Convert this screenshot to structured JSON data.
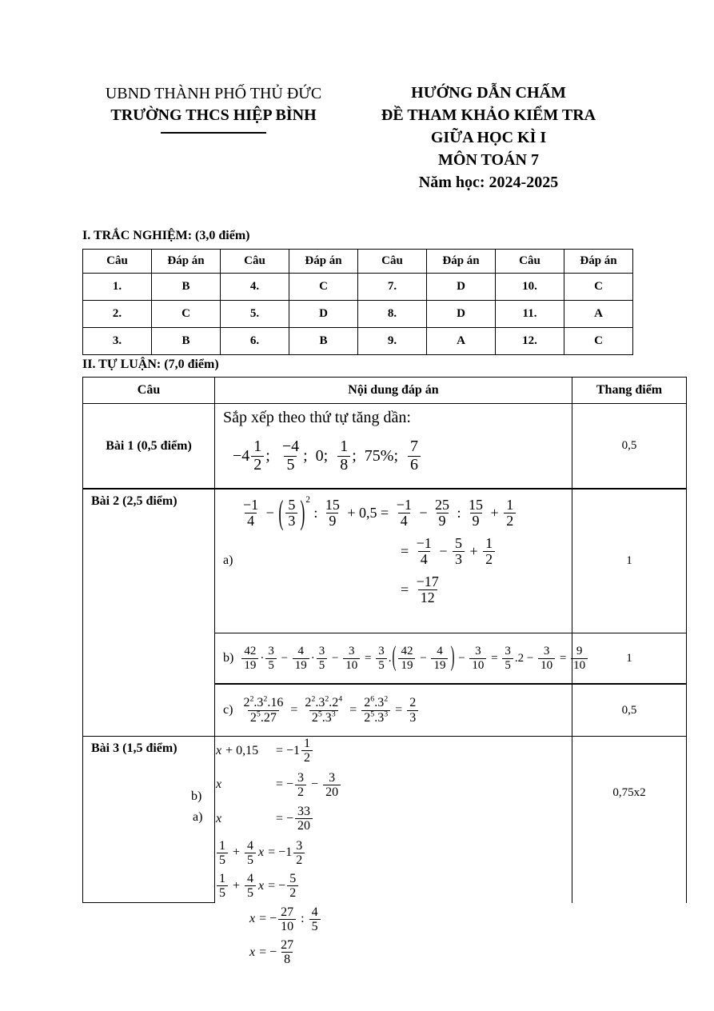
{
  "colors": {
    "text": "#000000",
    "background": "#ffffff",
    "border": "#000000"
  },
  "header": {
    "left": {
      "line1": "UBND THÀNH PHỐ THỦ ĐỨC",
      "line2": "TRƯỜNG THCS HIỆP BÌNH"
    },
    "right": {
      "line1": "HƯỚNG DẪN CHẤM",
      "line2": "ĐỀ THAM KHẢO KIỂM TRA",
      "line3": "GIỮA HỌC KÌ I",
      "line4": "MÔN TOÁN 7",
      "line5": "Năm học: 2024-2025"
    }
  },
  "section1": {
    "title": "I. TRẮC NGHIỆM: (3,0 điểm)"
  },
  "section2": {
    "title": "II. TỰ LUẬN: (7,0 điểm)"
  },
  "mc": {
    "headers": [
      "Câu",
      "Đáp án",
      "Câu",
      "Đáp án",
      "Câu",
      "Đáp án",
      "Câu",
      "Đáp án"
    ],
    "rows": [
      [
        "1.",
        "B",
        "4.",
        "C",
        "7.",
        "D",
        "10.",
        "C"
      ],
      [
        "2.",
        "C",
        "5.",
        "D",
        "8.",
        "D",
        "11.",
        "A"
      ],
      [
        "3.",
        "B",
        "6.",
        "B",
        "9.",
        "A",
        "12.",
        "C"
      ]
    ]
  },
  "essay": {
    "headers": {
      "cau": "Câu",
      "noidung": "Nội dung đáp án",
      "thang": "Thang điểm"
    },
    "bai1": {
      "label": "Bài 1 (0,5 điểm)",
      "intro": "Sắp xếp theo thứ tự tăng dần:",
      "score": "0,5"
    },
    "bai2": {
      "label": "Bài 2 (2,5 điểm)",
      "a_label": "a)",
      "b_label": "b)",
      "c_label": "c)",
      "score_a": "1",
      "score_b": "1",
      "score_c": "0,5"
    },
    "bai3": {
      "label": "Bài 3 (1,5 điểm)",
      "a_label": "a)",
      "b_label": "b)",
      "score": "0,75x2"
    }
  },
  "math": {
    "b1": [
      {
        "t": "−4"
      },
      {
        "f": [
          "1",
          "2"
        ]
      },
      {
        "t": ";  "
      },
      {
        "f": [
          "−4",
          "5"
        ]
      },
      {
        "t": ";  0;  "
      },
      {
        "f": [
          "1",
          "8"
        ]
      },
      {
        "t": ";  75%;  "
      },
      {
        "f": [
          "7",
          "6"
        ]
      }
    ],
    "b2a1": [
      {
        "f": [
          "−1",
          "4"
        ]
      },
      {
        "t": " − "
      },
      {
        "p": [
          {
            "f": [
              "5",
              "3"
            ]
          }
        ],
        "sup": "2"
      },
      {
        "t": " : "
      },
      {
        "f": [
          "15",
          "9"
        ]
      },
      {
        "t": " + 0,5 = "
      },
      {
        "f": [
          "−1",
          "4"
        ]
      },
      {
        "t": " − "
      },
      {
        "f": [
          "25",
          "9"
        ]
      },
      {
        "t": " : "
      },
      {
        "f": [
          "15",
          "9"
        ]
      },
      {
        "t": " + "
      },
      {
        "f": [
          "1",
          "2"
        ]
      }
    ],
    "b2a2": [
      {
        "t": "= "
      },
      {
        "f": [
          "−1",
          "4"
        ]
      },
      {
        "t": " − "
      },
      {
        "f": [
          "5",
          "3"
        ]
      },
      {
        "t": " + "
      },
      {
        "f": [
          "1",
          "2"
        ]
      }
    ],
    "b2a3": [
      {
        "t": "= "
      },
      {
        "f": [
          "−17",
          "12"
        ]
      }
    ],
    "b2b": [
      {
        "f": [
          "42",
          "19"
        ]
      },
      {
        "t": "·"
      },
      {
        "f": [
          "3",
          "5"
        ]
      },
      {
        "t": " − "
      },
      {
        "f": [
          "4",
          "19"
        ]
      },
      {
        "t": "·"
      },
      {
        "f": [
          "3",
          "5"
        ]
      },
      {
        "t": " − "
      },
      {
        "f": [
          "3",
          "10"
        ]
      },
      {
        "t": " = "
      },
      {
        "f": [
          "3",
          "5"
        ]
      },
      {
        "t": "."
      },
      {
        "p": [
          {
            "f": [
              "42",
              "19"
            ]
          },
          {
            "t": " − "
          },
          {
            "f": [
              "4",
              "19"
            ]
          }
        ]
      },
      {
        "t": " − "
      },
      {
        "f": [
          "3",
          "10"
        ]
      },
      {
        "t": " = "
      },
      {
        "f": [
          "3",
          "5"
        ]
      },
      {
        "t": ".2 − "
      },
      {
        "f": [
          "3",
          "10"
        ]
      },
      {
        "t": " = "
      },
      {
        "f": [
          "9",
          "10"
        ]
      }
    ],
    "b2c": [
      {
        "f": [
          [
            {
              "t": "2"
            },
            {
              "s": "2"
            },
            {
              "t": ".3"
            },
            {
              "s": "2"
            },
            {
              "t": ".16"
            }
          ],
          [
            {
              "t": "2"
            },
            {
              "s": "5"
            },
            {
              "t": ".27"
            }
          ]
        ]
      },
      {
        "t": " = "
      },
      {
        "f": [
          [
            {
              "t": "2"
            },
            {
              "s": "2"
            },
            {
              "t": ".3"
            },
            {
              "s": "2"
            },
            {
              "t": ".2"
            },
            {
              "s": "4"
            }
          ],
          [
            {
              "t": "2"
            },
            {
              "s": "5"
            },
            {
              "t": ".3"
            },
            {
              "s": "3"
            }
          ]
        ]
      },
      {
        "t": " = "
      },
      {
        "f": [
          [
            {
              "t": "2"
            },
            {
              "s": "6"
            },
            {
              "t": ".3"
            },
            {
              "s": "2"
            }
          ],
          [
            {
              "t": "2"
            },
            {
              "s": "5"
            },
            {
              "t": ".3"
            },
            {
              "s": "3"
            }
          ]
        ]
      },
      {
        "t": " = "
      },
      {
        "f": [
          "2",
          "3"
        ]
      }
    ],
    "b3a1L": [
      {
        "i": "x"
      },
      {
        "t": " + 0,15"
      }
    ],
    "b3a1R": [
      {
        "t": "= −1"
      },
      {
        "f": [
          "1",
          "2"
        ]
      }
    ],
    "b3a2L": [
      {
        "i": "x"
      }
    ],
    "b3a2R": [
      {
        "t": "= −"
      },
      {
        "f": [
          "3",
          "2"
        ]
      },
      {
        "t": " − "
      },
      {
        "f": [
          "3",
          "20"
        ]
      }
    ],
    "b3a3L": [
      {
        "i": "x"
      }
    ],
    "b3a3R": [
      {
        "t": "= −"
      },
      {
        "f": [
          "33",
          "20"
        ]
      }
    ],
    "b3b1": [
      {
        "f": [
          "1",
          "5"
        ]
      },
      {
        "t": " + "
      },
      {
        "f": [
          "4",
          "5"
        ]
      },
      {
        "i": "x"
      },
      {
        "t": " = −1"
      },
      {
        "f": [
          "3",
          "2"
        ]
      }
    ],
    "b3b2": [
      {
        "f": [
          "1",
          "5"
        ]
      },
      {
        "t": " + "
      },
      {
        "f": [
          "4",
          "5"
        ]
      },
      {
        "i": "x"
      },
      {
        "t": " = −"
      },
      {
        "f": [
          "5",
          "2"
        ]
      }
    ],
    "b3b3": [
      {
        "i": "x"
      },
      {
        "t": " = −"
      },
      {
        "f": [
          "27",
          "10"
        ]
      },
      {
        "t": " : "
      },
      {
        "f": [
          "4",
          "5"
        ]
      }
    ],
    "b3b4": [
      {
        "i": "x"
      },
      {
        "t": " = −"
      },
      {
        "f": [
          "27",
          "8"
        ]
      }
    ]
  }
}
